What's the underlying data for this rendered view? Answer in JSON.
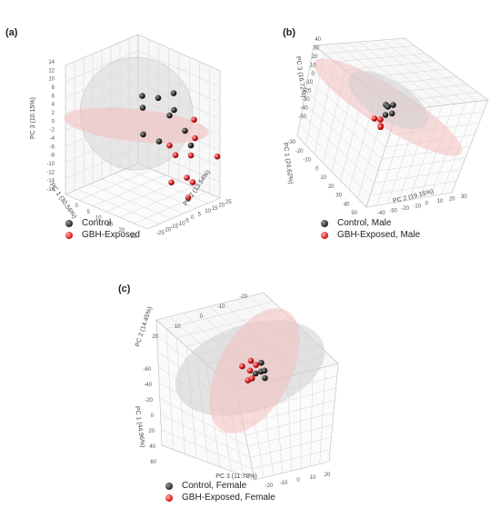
{
  "panels": [
    {
      "panel_label": "(a)",
      "axes": {
        "pc3": "PC 3 (10.15%)",
        "pc1": "PC 1 (30.56%)",
        "pc2": "PC 2 (13.54%)"
      },
      "pc3_ticks": [
        "-16",
        "-14",
        "-12",
        "-10",
        "-8",
        "-6",
        "-4",
        "-2",
        "0",
        "2",
        "4",
        "6",
        "8",
        "10",
        "12",
        "14"
      ],
      "pc1_ticks": [
        "0",
        "5",
        "10",
        "15",
        "20",
        "25"
      ],
      "pc2_ticks": [
        "-25",
        "-20",
        "-15",
        "-10",
        "-5",
        "0",
        "5",
        "10",
        "15",
        "20",
        "25"
      ],
      "legend": [
        "Control",
        "GBH-Exposed"
      ]
    },
    {
      "panel_label": "(b)",
      "axes": {
        "pc3": "PC 3 (16.72%)",
        "pc1": "PC 1 (24.62%)",
        "pc2": "PC 2 (19.15%)"
      },
      "pc3_ticks": [
        "-50",
        "-40",
        "-30",
        "-20",
        "-10",
        "0",
        "10",
        "20",
        "30",
        "40"
      ],
      "pc1_ticks": [
        "-30",
        "-20",
        "-10",
        "0",
        "10",
        "20",
        "30",
        "40",
        "50"
      ],
      "pc2_ticks": [
        "-40",
        "-30",
        "-20",
        "-10",
        "0",
        "10",
        "20",
        "30"
      ],
      "legend": [
        "Control, Male",
        "GBH-Exposed, Male"
      ]
    },
    {
      "panel_label": "(c)",
      "axes": {
        "pc2": "PC 2 (14.45%)",
        "pc1": "PC 1 (44.96%)",
        "pc3": "PC 3 (11.78%)"
      },
      "pc2_ticks": [
        "20",
        "10",
        "0",
        "-10",
        "-20"
      ],
      "pc1_ticks": [
        "-60",
        "-40",
        "-20",
        "0",
        "20",
        "40",
        "60"
      ],
      "pc3_ticks": [
        "-20",
        "-10",
        "0",
        "10",
        "20"
      ],
      "legend": [
        "Control, Female",
        "GBH-Exposed, Female"
      ]
    }
  ],
  "colors": {
    "control": "#333333",
    "gbh": "#dd2222",
    "ellipse_gray": "#bbbbbb",
    "ellipse_red": "#f2b8b8"
  },
  "chart_data": [
    {
      "type": "scatter",
      "subtype": "3d-pca",
      "series": [
        {
          "name": "Control",
          "color": "#333333",
          "points": [
            [
              3,
              2,
              5
            ],
            [
              5,
              -2,
              6
            ],
            [
              7,
              1,
              5
            ],
            [
              4,
              0,
              6
            ],
            [
              6,
              -1,
              4
            ],
            [
              2,
              1,
              6
            ],
            [
              4,
              3,
              1
            ],
            [
              6,
              2,
              0
            ],
            [
              8,
              -1,
              1
            ],
            [
              10,
              0,
              0
            ]
          ]
        },
        {
          "name": "GBH-Exposed",
          "color": "#dd2222",
          "points": [
            [
              6,
              -5,
              -1
            ],
            [
              8,
              -3,
              -2
            ],
            [
              10,
              0,
              -2
            ],
            [
              12,
              3,
              -3
            ],
            [
              14,
              4,
              -2
            ],
            [
              9,
              2,
              -1
            ],
            [
              11,
              5,
              -3
            ],
            [
              7,
              1,
              -1
            ],
            [
              13,
              -2,
              -2
            ],
            [
              15,
              6,
              -3
            ]
          ]
        }
      ]
    },
    {
      "type": "scatter",
      "subtype": "3d-pca",
      "series": [
        {
          "name": "Control, Male",
          "color": "#333333",
          "points": [
            [
              5,
              0,
              2
            ],
            [
              6,
              2,
              3
            ],
            [
              7,
              4,
              1
            ],
            [
              4,
              3,
              2
            ],
            [
              8,
              1,
              0
            ]
          ]
        },
        {
          "name": "GBH-Exposed, Male",
          "color": "#dd2222",
          "points": [
            [
              9,
              -2,
              -3
            ],
            [
              10,
              -4,
              -2
            ],
            [
              11,
              -1,
              -4
            ],
            [
              12,
              0,
              -3
            ]
          ]
        }
      ]
    },
    {
      "type": "scatter",
      "subtype": "3d-pca",
      "series": [
        {
          "name": "Control, Female",
          "color": "#333333",
          "points": [
            [
              0,
              2,
              -3
            ],
            [
              2,
              0,
              -2
            ],
            [
              4,
              -2,
              -3
            ],
            [
              1,
              -1,
              -1
            ],
            [
              3,
              1,
              -2
            ]
          ]
        },
        {
          "name": "GBH-Exposed, Female",
          "color": "#dd2222",
          "points": [
            [
              -2,
              3,
              5
            ],
            [
              0,
              1,
              2
            ],
            [
              2,
              -1,
              4
            ],
            [
              4,
              2,
              6
            ],
            [
              -1,
              5,
              3
            ],
            [
              1,
              4,
              2
            ]
          ]
        }
      ]
    }
  ]
}
